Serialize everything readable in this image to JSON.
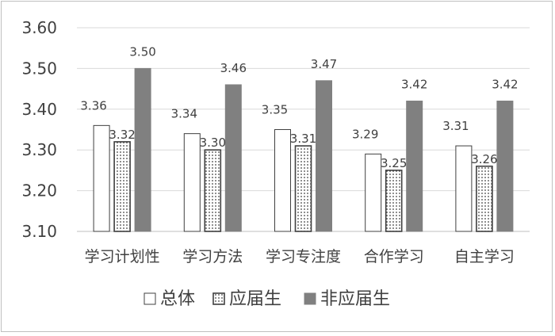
{
  "chart_data": {
    "type": "bar",
    "categories": [
      "学习计划性",
      "学习方法",
      "学习专注度",
      "合作学习",
      "自主学习"
    ],
    "series": [
      {
        "name": "总体",
        "values": [
          3.36,
          3.34,
          3.35,
          3.29,
          3.31
        ],
        "labels": [
          "3.36",
          "3.34",
          "3.35",
          "3.29",
          "3.31"
        ],
        "fill": "#ffffff",
        "pattern": "none"
      },
      {
        "name": "应届生",
        "values": [
          3.32,
          3.3,
          3.31,
          3.25,
          3.26
        ],
        "labels": [
          "3.32",
          "3.30",
          "3.31",
          "3.25",
          "3.26"
        ],
        "fill": "#ffffff",
        "pattern": "dots"
      },
      {
        "name": "非应届生",
        "values": [
          3.5,
          3.46,
          3.47,
          3.42,
          3.42
        ],
        "labels": [
          "3.50",
          "3.46",
          "3.47",
          "3.42",
          "3.42"
        ],
        "fill": "#808080",
        "pattern": "solid"
      }
    ],
    "yticks": [
      "3.10",
      "3.20",
      "3.30",
      "3.40",
      "3.50",
      "3.60"
    ],
    "ylim": [
      3.1,
      3.6
    ],
    "grid": true,
    "legend_position": "bottom",
    "title": "",
    "xlabel": "",
    "ylabel": ""
  }
}
